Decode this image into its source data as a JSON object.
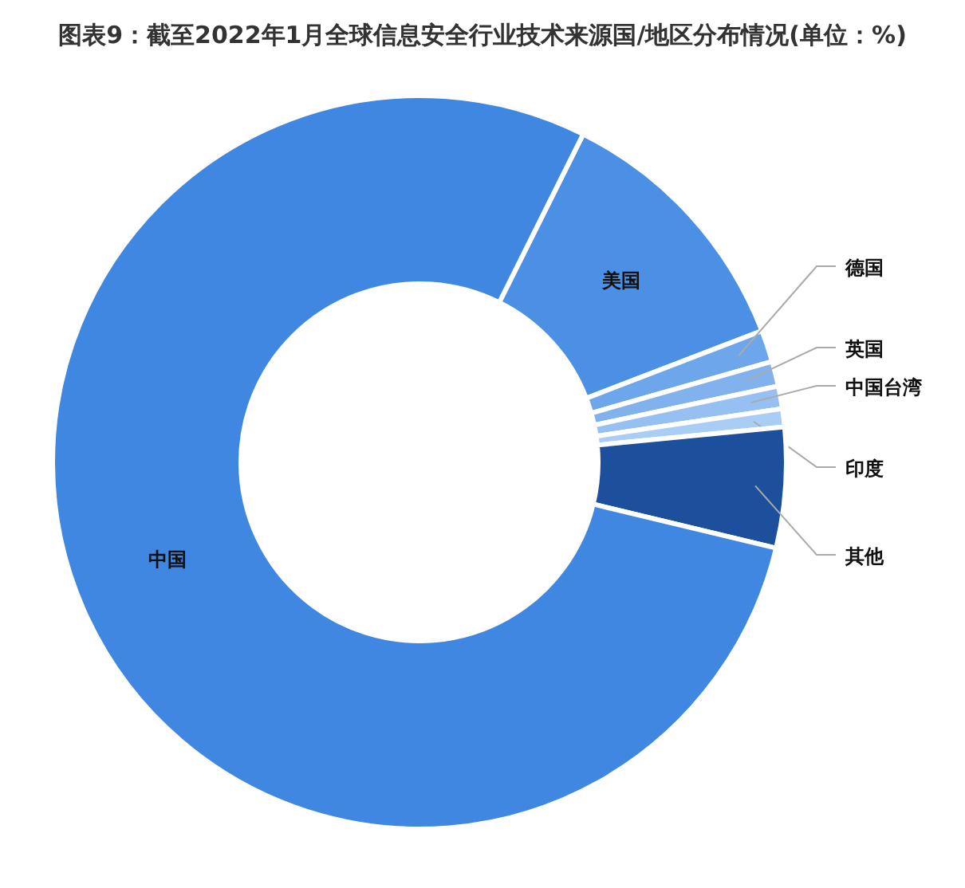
{
  "chart_data": {
    "type": "donut",
    "title": "图表9：截至2022年1月全球信息安全行业技术来源国/地区分布情况(单位：%)",
    "categories": [
      "美国",
      "德国",
      "英国",
      "中国台湾",
      "印度",
      "其他",
      "中国"
    ],
    "values": [
      11.8,
      1.4,
      1.1,
      1.0,
      0.8,
      5.3,
      78.6
    ],
    "colors": [
      "#4b90e4",
      "#6ea6eb",
      "#82b2ee",
      "#97c0f2",
      "#aacdf5",
      "#1c4f9c",
      "#3f87e0"
    ]
  }
}
